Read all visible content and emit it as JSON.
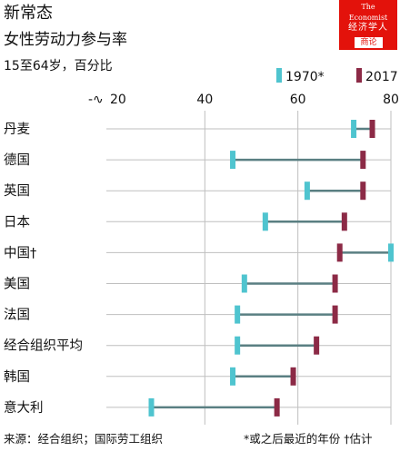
{
  "header": {
    "title": "新常态",
    "subtitle": "女性劳动力参与率",
    "unit": "15至64岁，百分比"
  },
  "logo": {
    "line1": "The",
    "line2": "Economist",
    "cn": "经济学人",
    "sub": "商论"
  },
  "footer": {
    "source": "来源：经合组织；国际劳工组织",
    "note": "*或之后最近的年份 †估计"
  },
  "colors": {
    "y1970": "#4fc4cf",
    "y2017": "#8c2a46",
    "connector": "#5a7f82",
    "grid": "#bfbfbf"
  },
  "chart_data": {
    "type": "dot-range",
    "xlim": [
      20,
      80
    ],
    "x_ticks": [
      "20",
      "40",
      "60",
      "80"
    ],
    "axis_break_symbol": "-∿",
    "legend": [
      "1970*",
      "2017"
    ],
    "categories": [
      "丹麦",
      "德国",
      "英国",
      "日本",
      "中国†",
      "美国",
      "法国",
      "经合组织平均",
      "韩国",
      "意大利"
    ],
    "series": [
      {
        "name": "1970*",
        "values": [
          72,
          46,
          62,
          53,
          80,
          48.5,
          47,
          47,
          46,
          28.5
        ]
      },
      {
        "name": "2017",
        "values": [
          76,
          74,
          74,
          70,
          69,
          68,
          68,
          64,
          59,
          55.5
        ]
      }
    ]
  }
}
